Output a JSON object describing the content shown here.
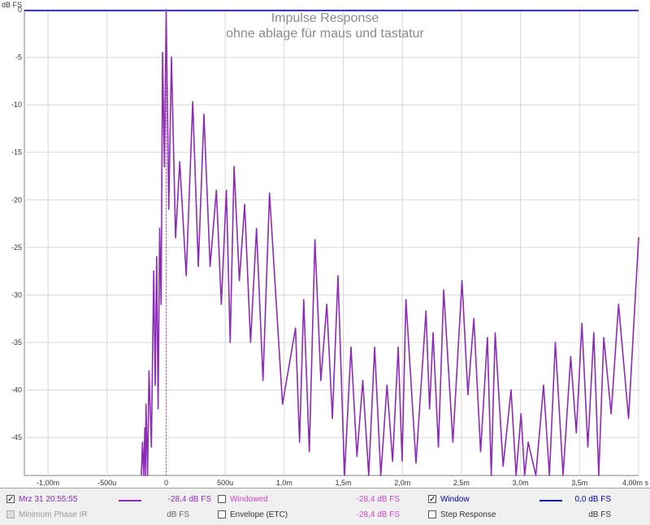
{
  "chart_data": {
    "type": "line",
    "title": "Impulse Response",
    "subtitle": "ohne ablage für maus und tastatur",
    "xlabel": "",
    "ylabel": "dB FS",
    "x_unit": "s",
    "xlim": [
      -0.0012,
      0.004
    ],
    "ylim": [
      -49,
      0
    ],
    "x_ticks": [
      -0.001,
      -0.0005,
      0,
      0.0005,
      0.001,
      0.0015,
      0.002,
      0.0025,
      0.003,
      0.0035,
      0.004
    ],
    "x_tick_labels": [
      "-1,00m",
      "-500u",
      "0",
      "500u",
      "1,0m",
      "1,5m",
      "2,0m",
      "2,5m",
      "3,0m",
      "3,5m",
      "4,00m s"
    ],
    "y_ticks": [
      0,
      -5,
      -10,
      -15,
      -20,
      -25,
      -30,
      -35,
      -40,
      -45
    ],
    "y_tick_labels": [
      "0",
      "-5",
      "-10",
      "-15",
      "-20",
      "-25",
      "-30",
      "-35",
      "-40",
      "-45"
    ],
    "grid": true,
    "series": [
      {
        "name": "Mrz 31 20:55:55",
        "color": "#8b2bb8",
        "peaks": [
          [
            -0.0002,
            -45.5
          ],
          [
            -0.00018,
            -44
          ],
          [
            -0.00017,
            -41.5
          ],
          [
            -0.000145,
            -38
          ],
          [
            -0.000105,
            -27.5
          ],
          [
            -8e-05,
            -26
          ],
          [
            -5.5e-05,
            -23
          ],
          [
            -3e-05,
            -4.5
          ],
          [
            0.0,
            0
          ],
          [
            4.5e-05,
            -5
          ],
          [
            0.000115,
            -16
          ],
          [
            0.000225,
            -9.7
          ],
          [
            0.00032,
            -11
          ],
          [
            0.000425,
            -19
          ],
          [
            0.00051,
            -19
          ],
          [
            0.000575,
            -16.5
          ],
          [
            0.000665,
            -20.5
          ],
          [
            0.000765,
            -23
          ],
          [
            0.000875,
            -19.3
          ],
          [
            0.001095,
            -33.5
          ],
          [
            0.001165,
            -30.5
          ],
          [
            0.00126,
            -24.2
          ],
          [
            0.00136,
            -31
          ],
          [
            0.001455,
            -28
          ],
          [
            0.001565,
            -35.5
          ],
          [
            0.001665,
            -39
          ],
          [
            0.001765,
            -35.5
          ],
          [
            0.00187,
            -39.5
          ],
          [
            0.001965,
            -35.5
          ],
          [
            0.00203,
            -30.5
          ],
          [
            0.0022,
            -31.7
          ],
          [
            0.00226,
            -34
          ],
          [
            0.00235,
            -29.5
          ],
          [
            0.002505,
            -28.5
          ],
          [
            0.002605,
            -32.5
          ],
          [
            0.00272,
            -34.5
          ],
          [
            0.002785,
            -34
          ],
          [
            0.00292,
            -40
          ],
          [
            0.003005,
            -42.5
          ],
          [
            0.003065,
            -45.5
          ],
          [
            0.003195,
            -39.5
          ],
          [
            0.003295,
            -35
          ],
          [
            0.003425,
            -36.5
          ],
          [
            0.00352,
            -33
          ],
          [
            0.00362,
            -34
          ],
          [
            0.003705,
            -34.5
          ],
          [
            0.00383,
            -31
          ],
          [
            0.004,
            -24
          ]
        ]
      }
    ],
    "window_series": {
      "name": "Window",
      "color": "#0000b0",
      "value_db": 0
    }
  },
  "legend": {
    "row1": [
      {
        "label": "Mrz 31 20:55:55",
        "checked": true,
        "color": "#8b2bb8",
        "value": "-28,4 dB FS"
      },
      {
        "label": "Windowed",
        "checked": false,
        "color": "#cc44cc",
        "value": "-28,4 dB FS"
      },
      {
        "label": "Window",
        "checked": true,
        "color": "#0000b0",
        "value": "0,0 dB FS"
      }
    ],
    "row2": [
      {
        "label": "Minimum Phase IR",
        "checked": false,
        "disabled": true,
        "value": "dB FS"
      },
      {
        "label": "Envelope (ETC)",
        "checked": false,
        "value": "-28,4 dB FS"
      },
      {
        "label": "Step Response",
        "checked": false,
        "value": "dB FS"
      }
    ],
    "check_glyph": "✓"
  }
}
